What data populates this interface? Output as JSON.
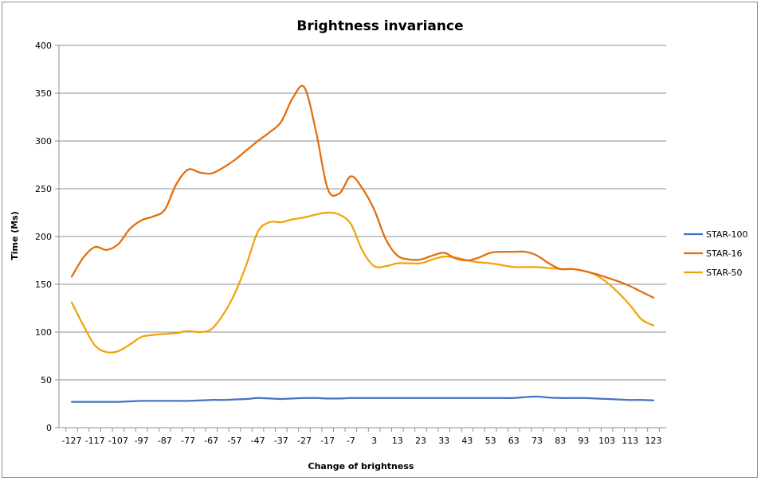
{
  "chart_data": {
    "type": "line",
    "title": "Brightness invariance",
    "xlabel": "Change of brightness",
    "ylabel": "Time (Ms)",
    "ylim": [
      0,
      400
    ],
    "yticks": [
      0,
      50,
      100,
      150,
      200,
      250,
      300,
      350,
      400
    ],
    "grid": "horizontal",
    "legend_position": "right",
    "x": [
      -127,
      -122,
      -117,
      -112,
      -107,
      -102,
      -97,
      -92,
      -87,
      -82,
      -77,
      -72,
      -67,
      -62,
      -57,
      -52,
      -47,
      -42,
      -37,
      -32,
      -27,
      -22,
      -17,
      -12,
      -7,
      -2,
      3,
      8,
      13,
      18,
      23,
      28,
      33,
      38,
      43,
      48,
      53,
      58,
      63,
      68,
      73,
      78,
      83,
      88,
      93,
      98,
      103,
      108,
      113,
      118,
      123
    ],
    "xticks": [
      "-127",
      "-117",
      "-107",
      "-97",
      "-87",
      "-77",
      "-67",
      "-57",
      "-47",
      "-37",
      "-27",
      "-17",
      "-7",
      "3",
      "13",
      "23",
      "33",
      "43",
      "53",
      "63",
      "73",
      "83",
      "93",
      "103",
      "113",
      "123"
    ],
    "series": [
      {
        "name": "STAR-100",
        "color": "#4472c4",
        "values": [
          27,
          27,
          27,
          27,
          27,
          27.5,
          28,
          28,
          28,
          28,
          28,
          28.5,
          29,
          29,
          29.5,
          30,
          31,
          30.5,
          30,
          30.5,
          31,
          31,
          30.5,
          30.5,
          31,
          31,
          31,
          31,
          31,
          31,
          31,
          31,
          31,
          31,
          31,
          31,
          31,
          31,
          31,
          32,
          32.5,
          31.5,
          31,
          31,
          31,
          30.5,
          30,
          29.5,
          29,
          29,
          28.5
        ]
      },
      {
        "name": "STAR-16",
        "color": "#e46c0a",
        "values": [
          158,
          178,
          189,
          186,
          192,
          208,
          217,
          221,
          228,
          255,
          270,
          267,
          266,
          272,
          280,
          290,
          300,
          309,
          320,
          345,
          356,
          310,
          250,
          245,
          263,
          250,
          228,
          197,
          180,
          176,
          176,
          180,
          183,
          177,
          175,
          178,
          183,
          184,
          184,
          184,
          180,
          172,
          166,
          166,
          164,
          161,
          157,
          153,
          148,
          142,
          136
        ]
      },
      {
        "name": "STAR-50",
        "color": "#f0a30a",
        "values": [
          131,
          107,
          86,
          79,
          80,
          87,
          95,
          97,
          98,
          99,
          101,
          100,
          103,
          118,
          140,
          170,
          205,
          215,
          215,
          218,
          220,
          223,
          225,
          223,
          213,
          185,
          169,
          169,
          172,
          172,
          172,
          176,
          179,
          178,
          175,
          173,
          172,
          170,
          168,
          168,
          168,
          167,
          166,
          166,
          164,
          160,
          152,
          141,
          128,
          113,
          107
        ]
      }
    ]
  }
}
